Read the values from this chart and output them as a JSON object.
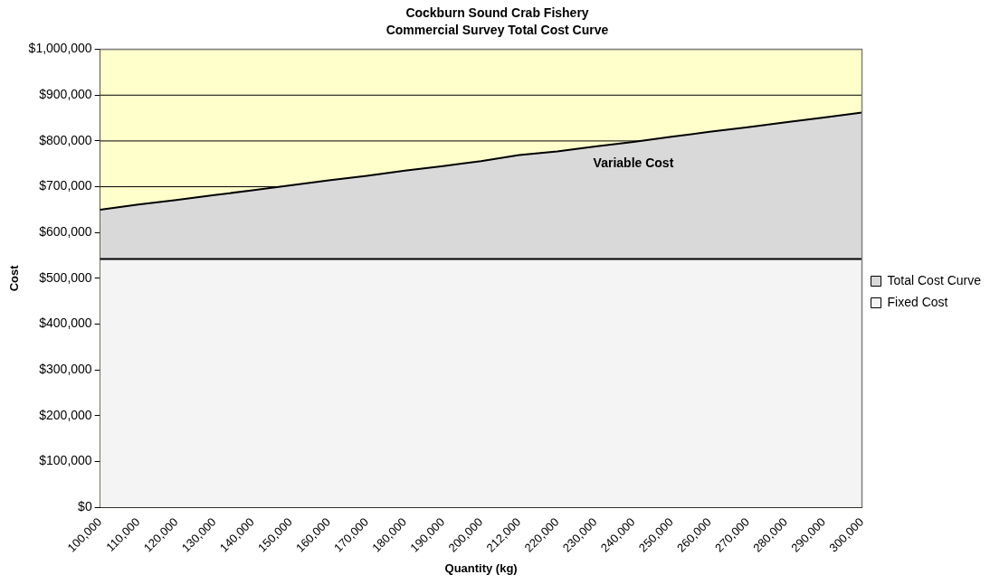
{
  "chart_data": {
    "type": "area",
    "title": "Cockburn Sound Crab Fishery",
    "subtitle": "Commercial Survey Total Cost Curve",
    "xlabel": "Quantity (kg)",
    "ylabel": "Cost",
    "categories": [
      "100,000",
      "110,000",
      "120,000",
      "130,000",
      "140,000",
      "150,000",
      "160,000",
      "170,000",
      "180,000",
      "190,000",
      "200,000",
      "212,000",
      "220,000",
      "230,000",
      "240,000",
      "250,000",
      "260,000",
      "270,000",
      "280,000",
      "290,000",
      "300,000"
    ],
    "series": [
      {
        "name": "Total Cost Curve",
        "color": "#d9d9d9",
        "values": [
          650000,
          661000,
          671000,
          682000,
          692000,
          703000,
          714000,
          724000,
          735000,
          745000,
          756000,
          769000,
          777000,
          788000,
          798000,
          809000,
          820000,
          830000,
          841000,
          851000,
          862000
        ]
      },
      {
        "name": "Fixed Cost",
        "color": "#f4f4f4",
        "values": [
          542000,
          542000,
          542000,
          542000,
          542000,
          542000,
          542000,
          542000,
          542000,
          542000,
          542000,
          542000,
          542000,
          542000,
          542000,
          542000,
          542000,
          542000,
          542000,
          542000,
          542000
        ]
      }
    ],
    "ylim": [
      0,
      1000000
    ],
    "yticks": [
      {
        "value": 0,
        "label": "$0"
      },
      {
        "value": 100000,
        "label": "$100,000"
      },
      {
        "value": 200000,
        "label": "$200,000"
      },
      {
        "value": 300000,
        "label": "$300,000"
      },
      {
        "value": 400000,
        "label": "$400,000"
      },
      {
        "value": 500000,
        "label": "$500,000"
      },
      {
        "value": 600000,
        "label": "$600,000"
      },
      {
        "value": 700000,
        "label": "$700,000"
      },
      {
        "value": 800000,
        "label": "$800,000"
      },
      {
        "value": 900000,
        "label": "$900,000"
      },
      {
        "value": 1000000,
        "label": "$1,000,000"
      }
    ],
    "annotations": [
      "Variable Cost"
    ],
    "bands": [
      {
        "axis": "y",
        "from": 0,
        "to": 1000000,
        "color": "#ffffcc"
      }
    ],
    "grid": "y",
    "legend": "right",
    "marker": "none",
    "line_style": "solid"
  }
}
